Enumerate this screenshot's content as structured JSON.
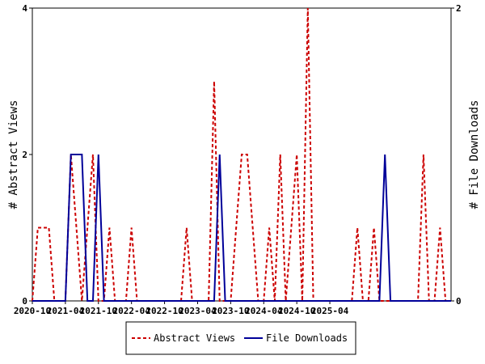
{
  "chart_data": {
    "type": "line",
    "ylabel_left": "# Abstract Views",
    "ylabel_right": "# File Downloads",
    "ylim_left": [
      0,
      4
    ],
    "ylim_right": [
      0,
      2
    ],
    "yticks_left": [
      "0",
      "2",
      "4"
    ],
    "yticks_right": [
      "0",
      "2"
    ],
    "xtick_labels": [
      "2020-10",
      "2021-04",
      "2021-10",
      "2022-04",
      "2022-10",
      "2023-04",
      "2023-10",
      "2024-04",
      "2024-10",
      "2025-04"
    ],
    "x_start": "2020-10",
    "legend_position": "bottom",
    "grid": false,
    "series": [
      {
        "name": "Abstract Views",
        "axis": "left",
        "color": "#cc0000",
        "style": "dashed",
        "values": [
          0,
          1,
          1,
          1,
          0,
          0,
          0,
          2,
          1,
          0,
          1,
          2,
          0,
          0,
          1,
          0,
          0,
          0,
          1,
          0,
          0,
          0,
          0,
          0,
          0,
          0,
          0,
          0,
          1,
          0,
          0,
          0,
          0,
          3,
          0,
          0,
          0,
          1,
          2,
          2,
          1,
          0,
          0,
          1,
          0,
          2,
          0,
          1,
          2,
          0,
          4,
          0,
          0,
          0,
          0,
          0,
          0,
          0,
          0,
          1,
          0,
          0,
          1,
          0,
          0,
          0,
          0,
          0,
          0,
          0,
          0,
          2,
          0,
          0,
          1,
          0,
          0
        ]
      },
      {
        "name": "File Downloads",
        "axis": "right",
        "color": "#000099",
        "style": "solid",
        "values": [
          0,
          0,
          0,
          0,
          0,
          0,
          0,
          1,
          1,
          1,
          0,
          0,
          1,
          0,
          0,
          0,
          0,
          0,
          0,
          0,
          0,
          0,
          0,
          0,
          0,
          0,
          0,
          0,
          0,
          0,
          0,
          0,
          0,
          0,
          1,
          0,
          0,
          0,
          0,
          0,
          0,
          0,
          0,
          0,
          0,
          0,
          0,
          0,
          0,
          0,
          0,
          0,
          0,
          0,
          0,
          0,
          0,
          0,
          0,
          0,
          0,
          0,
          0,
          0,
          1,
          0,
          0,
          0,
          0,
          0,
          0,
          0,
          0,
          0,
          0,
          0,
          0
        ]
      }
    ]
  }
}
